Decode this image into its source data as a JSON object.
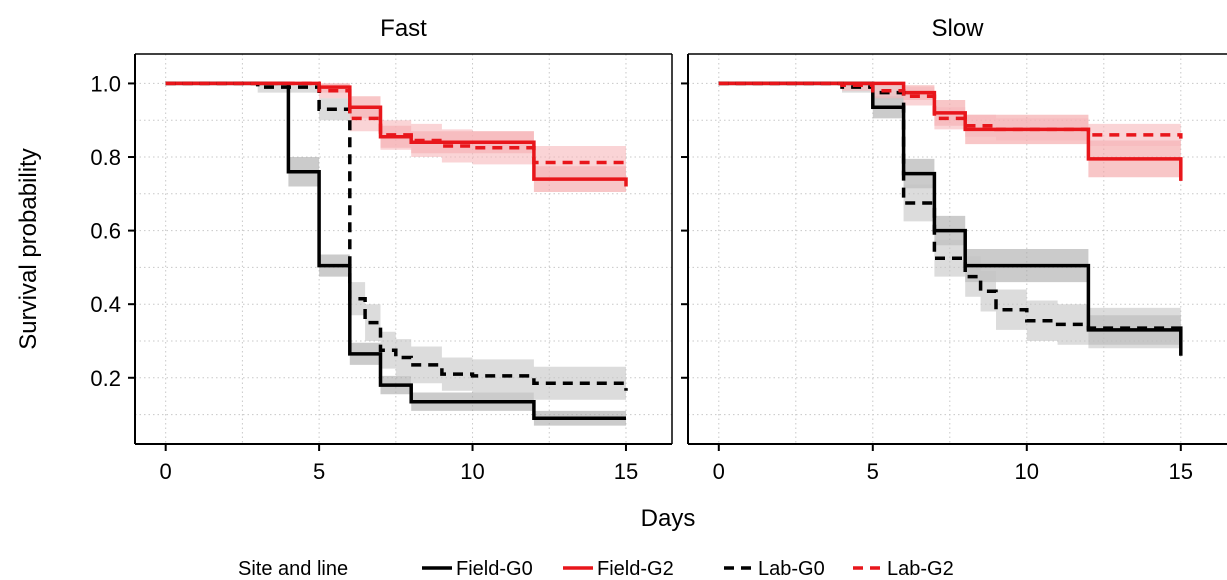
{
  "chart_data": {
    "type": "line",
    "subtype": "step (Kaplan-Meier survival curves with confidence bands)",
    "xlabel": "Days",
    "ylabel": "Survival probability",
    "xlim": [
      -1,
      16.5
    ],
    "ylim": [
      0.02,
      1.08
    ],
    "xticks": [
      0,
      5,
      10,
      15
    ],
    "yticks": [
      0.2,
      0.4,
      0.6,
      0.8,
      1.0
    ],
    "ytick_labels": [
      "0.2",
      "0.4",
      "0.6",
      "0.8",
      "1.0"
    ],
    "grid": "dotted",
    "legend": {
      "title": "Site and line",
      "position": "bottom",
      "entries": [
        {
          "label": "Field-G0",
          "color": "#000000",
          "dash": "solid"
        },
        {
          "label": "Field-G2",
          "color": "#e8161b",
          "dash": "solid"
        },
        {
          "label": "Lab-G0",
          "color": "#000000",
          "dash": "dashed"
        },
        {
          "label": "Lab-G2",
          "color": "#e8161b",
          "dash": "dashed"
        }
      ]
    },
    "panels": [
      {
        "title": "Fast",
        "series": [
          {
            "name": "Field-G0",
            "color": "#000000",
            "dash": "solid",
            "x": [
              0,
              4,
              5,
              6,
              7,
              8,
              12,
              15
            ],
            "y": [
              1.0,
              0.76,
              0.505,
              0.265,
              0.18,
              0.135,
              0.09,
              0.09
            ],
            "lo": [
              1.0,
              0.72,
              0.475,
              0.235,
              0.155,
              0.11,
              0.07,
              0.07
            ],
            "hi": [
              1.0,
              0.8,
              0.535,
              0.295,
              0.205,
              0.16,
              0.11,
              0.11
            ]
          },
          {
            "name": "Field-G2",
            "color": "#e8161b",
            "dash": "solid",
            "x": [
              0,
              5,
              6,
              7,
              8,
              12,
              15
            ],
            "y": [
              1.0,
              0.99,
              0.935,
              0.855,
              0.84,
              0.74,
              0.72
            ],
            "lo": [
              1.0,
              0.975,
              0.905,
              0.825,
              0.81,
              0.705,
              0.69
            ],
            "hi": [
              1.0,
              1.0,
              0.965,
              0.885,
              0.87,
              0.775,
              0.75
            ]
          },
          {
            "name": "Lab-G0",
            "color": "#000000",
            "dash": "dashed",
            "x": [
              0,
              3,
              5,
              6,
              6.5,
              7,
              7.5,
              8,
              9,
              10,
              12,
              15
            ],
            "y": [
              1.0,
              0.99,
              0.93,
              0.415,
              0.35,
              0.275,
              0.255,
              0.235,
              0.21,
              0.205,
              0.185,
              0.165
            ],
            "lo": [
              1.0,
              0.975,
              0.9,
              0.37,
              0.3,
              0.225,
              0.205,
              0.185,
              0.165,
              0.16,
              0.14,
              0.12
            ],
            "hi": [
              1.0,
              1.0,
              0.96,
              0.46,
              0.4,
              0.325,
              0.305,
              0.285,
              0.255,
              0.25,
              0.23,
              0.21
            ]
          },
          {
            "name": "Lab-G2",
            "color": "#e8161b",
            "dash": "dashed",
            "x": [
              0,
              5,
              6,
              7,
              8,
              9,
              10,
              12,
              15
            ],
            "y": [
              1.0,
              0.98,
              0.905,
              0.86,
              0.845,
              0.83,
              0.825,
              0.785,
              0.78
            ],
            "lo": [
              1.0,
              0.96,
              0.87,
              0.82,
              0.8,
              0.785,
              0.78,
              0.74,
              0.735
            ],
            "hi": [
              1.0,
              1.0,
              0.94,
              0.9,
              0.89,
              0.875,
              0.87,
              0.83,
              0.825
            ]
          }
        ]
      },
      {
        "title": "Slow",
        "series": [
          {
            "name": "Field-G0",
            "color": "#000000",
            "dash": "solid",
            "x": [
              0,
              5,
              6,
              7,
              8,
              12,
              15
            ],
            "y": [
              1.0,
              0.935,
              0.755,
              0.6,
              0.505,
              0.33,
              0.26
            ],
            "lo": [
              1.0,
              0.905,
              0.715,
              0.56,
              0.46,
              0.29,
              0.25
            ],
            "hi": [
              1.0,
              0.965,
              0.795,
              0.64,
              0.55,
              0.37,
              0.37
            ]
          },
          {
            "name": "Field-G2",
            "color": "#e8161b",
            "dash": "solid",
            "x": [
              0,
              6,
              7,
              8,
              12,
              15
            ],
            "y": [
              1.0,
              0.975,
              0.92,
              0.875,
              0.795,
              0.735
            ],
            "lo": [
              1.0,
              0.955,
              0.885,
              0.835,
              0.745,
              0.73
            ],
            "hi": [
              1.0,
              0.995,
              0.955,
              0.915,
              0.845,
              0.84
            ]
          },
          {
            "name": "Lab-G0",
            "color": "#000000",
            "dash": "dashed",
            "x": [
              0,
              4,
              5,
              6,
              7,
              8,
              8.5,
              9,
              10,
              11,
              12,
              15
            ],
            "y": [
              1.0,
              0.99,
              0.975,
              0.675,
              0.525,
              0.475,
              0.435,
              0.385,
              0.355,
              0.345,
              0.335,
              0.325
            ],
            "lo": [
              1.0,
              0.975,
              0.955,
              0.625,
              0.475,
              0.42,
              0.38,
              0.33,
              0.3,
              0.29,
              0.28,
              0.27
            ],
            "hi": [
              1.0,
              1.0,
              0.995,
              0.725,
              0.575,
              0.53,
              0.49,
              0.44,
              0.41,
              0.4,
              0.39,
              0.38
            ]
          },
          {
            "name": "Lab-G2",
            "color": "#e8161b",
            "dash": "dashed",
            "x": [
              0,
              4,
              5,
              6,
              7,
              8,
              9,
              12,
              15
            ],
            "y": [
              1.0,
              0.995,
              0.98,
              0.965,
              0.905,
              0.885,
              0.875,
              0.86,
              0.85
            ],
            "lo": [
              1.0,
              0.98,
              0.96,
              0.94,
              0.875,
              0.855,
              0.845,
              0.83,
              0.82
            ],
            "hi": [
              1.0,
              1.0,
              1.0,
              0.99,
              0.935,
              0.915,
              0.905,
              0.89,
              0.88
            ]
          }
        ]
      }
    ]
  }
}
